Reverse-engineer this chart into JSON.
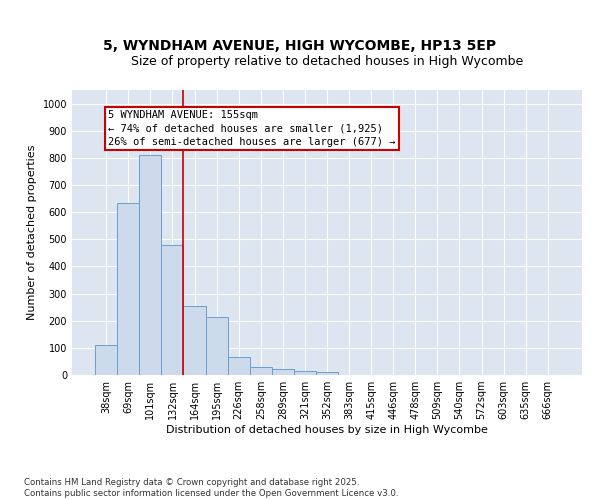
{
  "title_line1": "5, WYNDHAM AVENUE, HIGH WYCOMBE, HP13 5EP",
  "title_line2": "Size of property relative to detached houses in High Wycombe",
  "xlabel": "Distribution of detached houses by size in High Wycombe",
  "ylabel": "Number of detached properties",
  "categories": [
    "38sqm",
    "69sqm",
    "101sqm",
    "132sqm",
    "164sqm",
    "195sqm",
    "226sqm",
    "258sqm",
    "289sqm",
    "321sqm",
    "352sqm",
    "383sqm",
    "415sqm",
    "446sqm",
    "478sqm",
    "509sqm",
    "540sqm",
    "572sqm",
    "603sqm",
    "635sqm",
    "666sqm"
  ],
  "values": [
    110,
    635,
    810,
    480,
    255,
    215,
    65,
    28,
    22,
    15,
    10,
    0,
    0,
    0,
    0,
    0,
    0,
    0,
    0,
    0,
    0
  ],
  "bar_color": "#ccdaeb",
  "bar_edge_color": "#6a9fd0",
  "vline_x": 3.5,
  "vline_color": "#cc0000",
  "annotation_text": "5 WYNDHAM AVENUE: 155sqm\n← 74% of detached houses are smaller (1,925)\n26% of semi-detached houses are larger (677) →",
  "annotation_box_color": "#cc0000",
  "ylim": [
    0,
    1050
  ],
  "yticks": [
    0,
    100,
    200,
    300,
    400,
    500,
    600,
    700,
    800,
    900,
    1000
  ],
  "background_color": "#dde6f0",
  "footer_text": "Contains HM Land Registry data © Crown copyright and database right 2025.\nContains public sector information licensed under the Open Government Licence v3.0.",
  "title_fontsize": 10,
  "subtitle_fontsize": 9,
  "axis_label_fontsize": 8,
  "tick_fontsize": 7,
  "annotation_fontsize": 7.5
}
